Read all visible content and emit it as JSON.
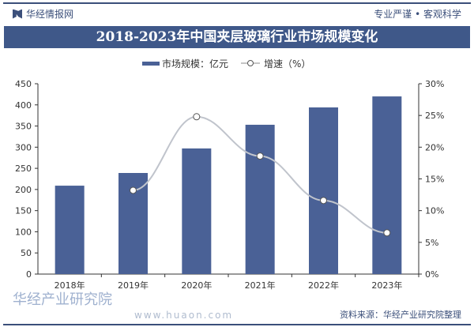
{
  "header": {
    "brand": "华经情报网",
    "slogan": "专业严谨 • 客观科学"
  },
  "footer": {
    "source": "资料来源：华经产业研究院整理",
    "watermark": "华经产业研究院",
    "watermark_url": "www.huaon.com"
  },
  "chart_data": {
    "type": "bar+line",
    "title": "2018-2023年中国夹层玻璃行业市场规模变化",
    "categories": [
      "2018年",
      "2019年",
      "2020年",
      "2021年",
      "2022年",
      "2023年"
    ],
    "series": [
      {
        "name": "市场规模：亿元",
        "type": "bar",
        "axis": "left",
        "color": "#4a6196",
        "values": [
          209,
          239,
          297,
          353,
          394,
          420
        ]
      },
      {
        "name": "增速（%）",
        "type": "line",
        "axis": "right",
        "color": "#c0c4cc",
        "values": [
          null,
          13.2,
          24.8,
          18.6,
          11.6,
          6.5
        ]
      }
    ],
    "left_axis": {
      "range": [
        0,
        450
      ],
      "ticks": [
        "0",
        "50",
        "100",
        "150",
        "200",
        "250",
        "300",
        "350",
        "400",
        "450"
      ]
    },
    "right_axis": {
      "range": [
        0,
        30
      ],
      "ticks": [
        "0%",
        "5%",
        "10%",
        "15%",
        "20%",
        "25%",
        "30%"
      ]
    },
    "grid": false,
    "legend": "top"
  }
}
